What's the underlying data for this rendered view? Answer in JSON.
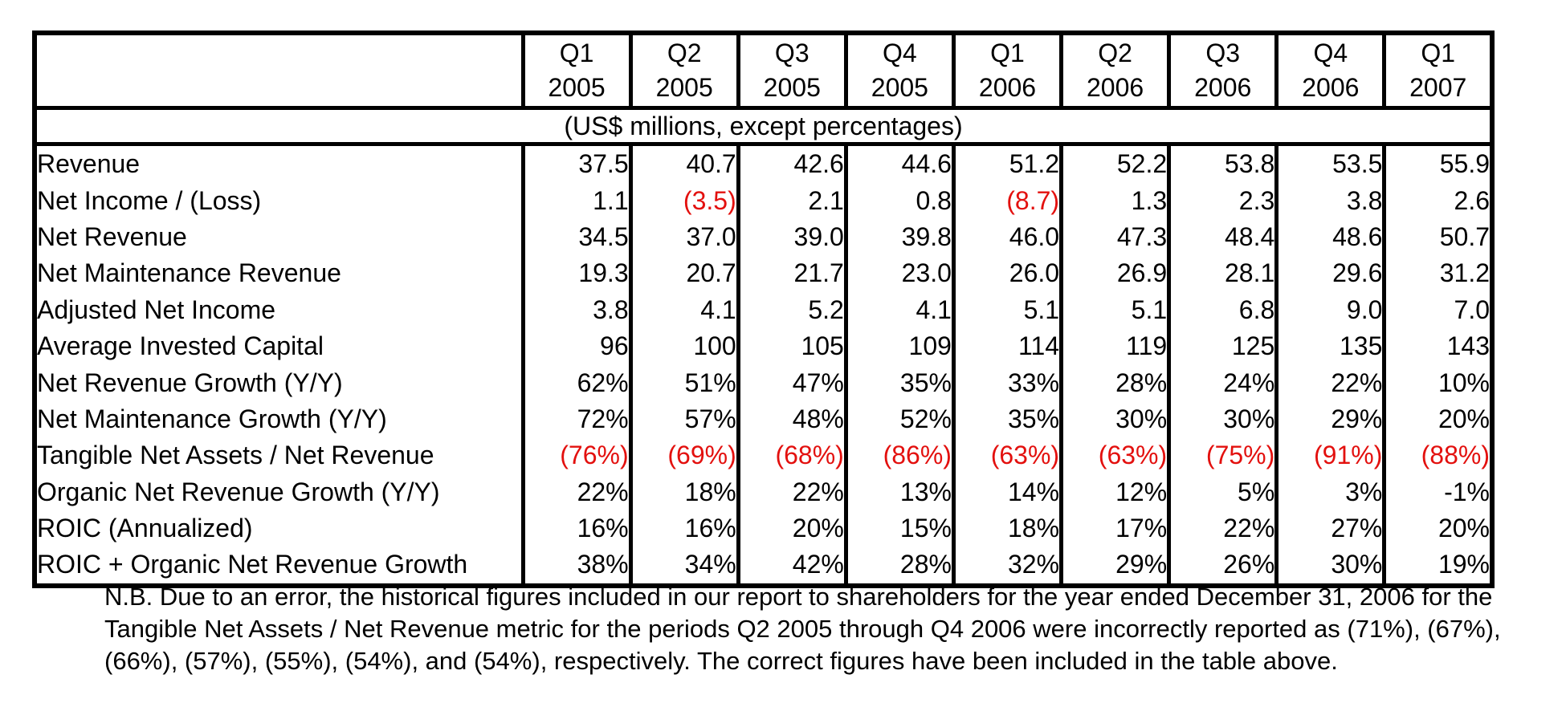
{
  "table": {
    "columns": [
      [
        "Q1",
        "2005"
      ],
      [
        "Q2",
        "2005"
      ],
      [
        "Q3",
        "2005"
      ],
      [
        "Q4",
        "2005"
      ],
      [
        "Q1",
        "2006"
      ],
      [
        "Q2",
        "2006"
      ],
      [
        "Q3",
        "2006"
      ],
      [
        "Q4",
        "2006"
      ],
      [
        "Q1",
        "2007"
      ]
    ],
    "units_note": "(US$ millions, except percentages)",
    "rows": [
      {
        "label": "Revenue",
        "values": [
          "37.5",
          "40.7",
          "42.6",
          "44.6",
          "51.2",
          "52.2",
          "53.8",
          "53.5",
          "55.9"
        ]
      },
      {
        "label": "Net Income / (Loss)",
        "values": [
          "1.1",
          "(3.5)",
          "2.1",
          "0.8",
          "(8.7)",
          "1.3",
          "2.3",
          "3.8",
          "2.6"
        ]
      },
      {
        "label": "Net Revenue",
        "values": [
          "34.5",
          "37.0",
          "39.0",
          "39.8",
          "46.0",
          "47.3",
          "48.4",
          "48.6",
          "50.7"
        ]
      },
      {
        "label": "Net Maintenance Revenue",
        "values": [
          "19.3",
          "20.7",
          "21.7",
          "23.0",
          "26.0",
          "26.9",
          "28.1",
          "29.6",
          "31.2"
        ]
      },
      {
        "label": "Adjusted Net Income",
        "values": [
          "3.8",
          "4.1",
          "5.2",
          "4.1",
          "5.1",
          "5.1",
          "6.8",
          "9.0",
          "7.0"
        ]
      },
      {
        "label": "Average Invested Capital",
        "values": [
          "96",
          "100",
          "105",
          "109",
          "114",
          "119",
          "125",
          "135",
          "143"
        ]
      },
      {
        "label": "Net Revenue Growth (Y/Y)",
        "values": [
          "62%",
          "51%",
          "47%",
          "35%",
          "33%",
          "28%",
          "24%",
          "22%",
          "10%"
        ]
      },
      {
        "label": "Net Maintenance Growth (Y/Y)",
        "values": [
          "72%",
          "57%",
          "48%",
          "52%",
          "35%",
          "30%",
          "30%",
          "29%",
          "20%"
        ]
      },
      {
        "label": "Tangible Net Assets / Net Revenue",
        "values": [
          "(76%)",
          "(69%)",
          "(68%)",
          "(86%)",
          "(63%)",
          "(63%)",
          "(75%)",
          "(91%)",
          "(88%)"
        ]
      },
      {
        "label": "Organic Net Revenue Growth (Y/Y)",
        "values": [
          "22%",
          "18%",
          "22%",
          "13%",
          "14%",
          "12%",
          "5%",
          "3%",
          "-1%"
        ]
      },
      {
        "label": "ROIC (Annualized)",
        "values": [
          "16%",
          "16%",
          "20%",
          "15%",
          "18%",
          "17%",
          "22%",
          "27%",
          "20%"
        ]
      },
      {
        "label": "ROIC + Organic Net Revenue Growth",
        "values": [
          "38%",
          "34%",
          "42%",
          "28%",
          "32%",
          "29%",
          "26%",
          "30%",
          "19%"
        ]
      }
    ]
  },
  "footnote": "N.B. Due to an error, the historical figures included in our report to shareholders for the year ended December 31, 2006 for the Tangible Net Assets / Net Revenue metric for the periods Q2 2005 through Q4 2006 were incorrectly reported as (71%), (67%), (66%), (57%), (55%), (54%), and (54%), respectively. The correct figures have been included in the table above.",
  "colors": {
    "negative": "#e3100e",
    "text": "#000000",
    "border": "#000000"
  }
}
